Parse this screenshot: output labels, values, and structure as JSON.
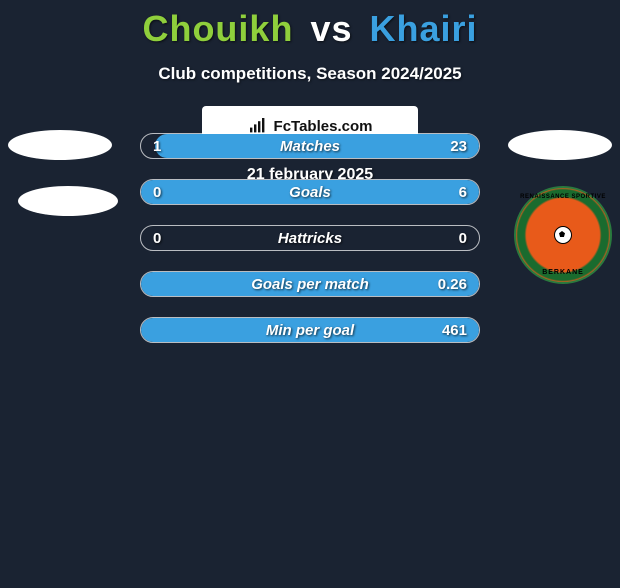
{
  "title": {
    "player1": "Chouikh",
    "vs": "vs",
    "player2": "Khairi",
    "player1_color": "#8fcf3c",
    "vs_color": "#ffffff",
    "player2_color": "#3aa0e0"
  },
  "subtitle": "Club competitions, Season 2024/2025",
  "club_badge": {
    "text_top": "RENAISSANCE SPORTIVE",
    "text_bottom": "BERKANE"
  },
  "bars": {
    "fill_color": "#3aa0e0",
    "track_border": "rgba(255,255,255,0.7)",
    "rows": [
      {
        "label": "Matches",
        "left": "1",
        "right": "23",
        "fill_pct": 96
      },
      {
        "label": "Goals",
        "left": "0",
        "right": "6",
        "fill_pct": 100
      },
      {
        "label": "Hattricks",
        "left": "0",
        "right": "0",
        "fill_pct": 0
      },
      {
        "label": "Goals per match",
        "left": "",
        "right": "0.26",
        "fill_pct": 100
      },
      {
        "label": "Min per goal",
        "left": "",
        "right": "461",
        "fill_pct": 100
      }
    ]
  },
  "footer": {
    "site": "FcTables.com",
    "date": "21 february 2025"
  },
  "colors": {
    "background": "#1a2332",
    "text_white": "#ffffff"
  }
}
